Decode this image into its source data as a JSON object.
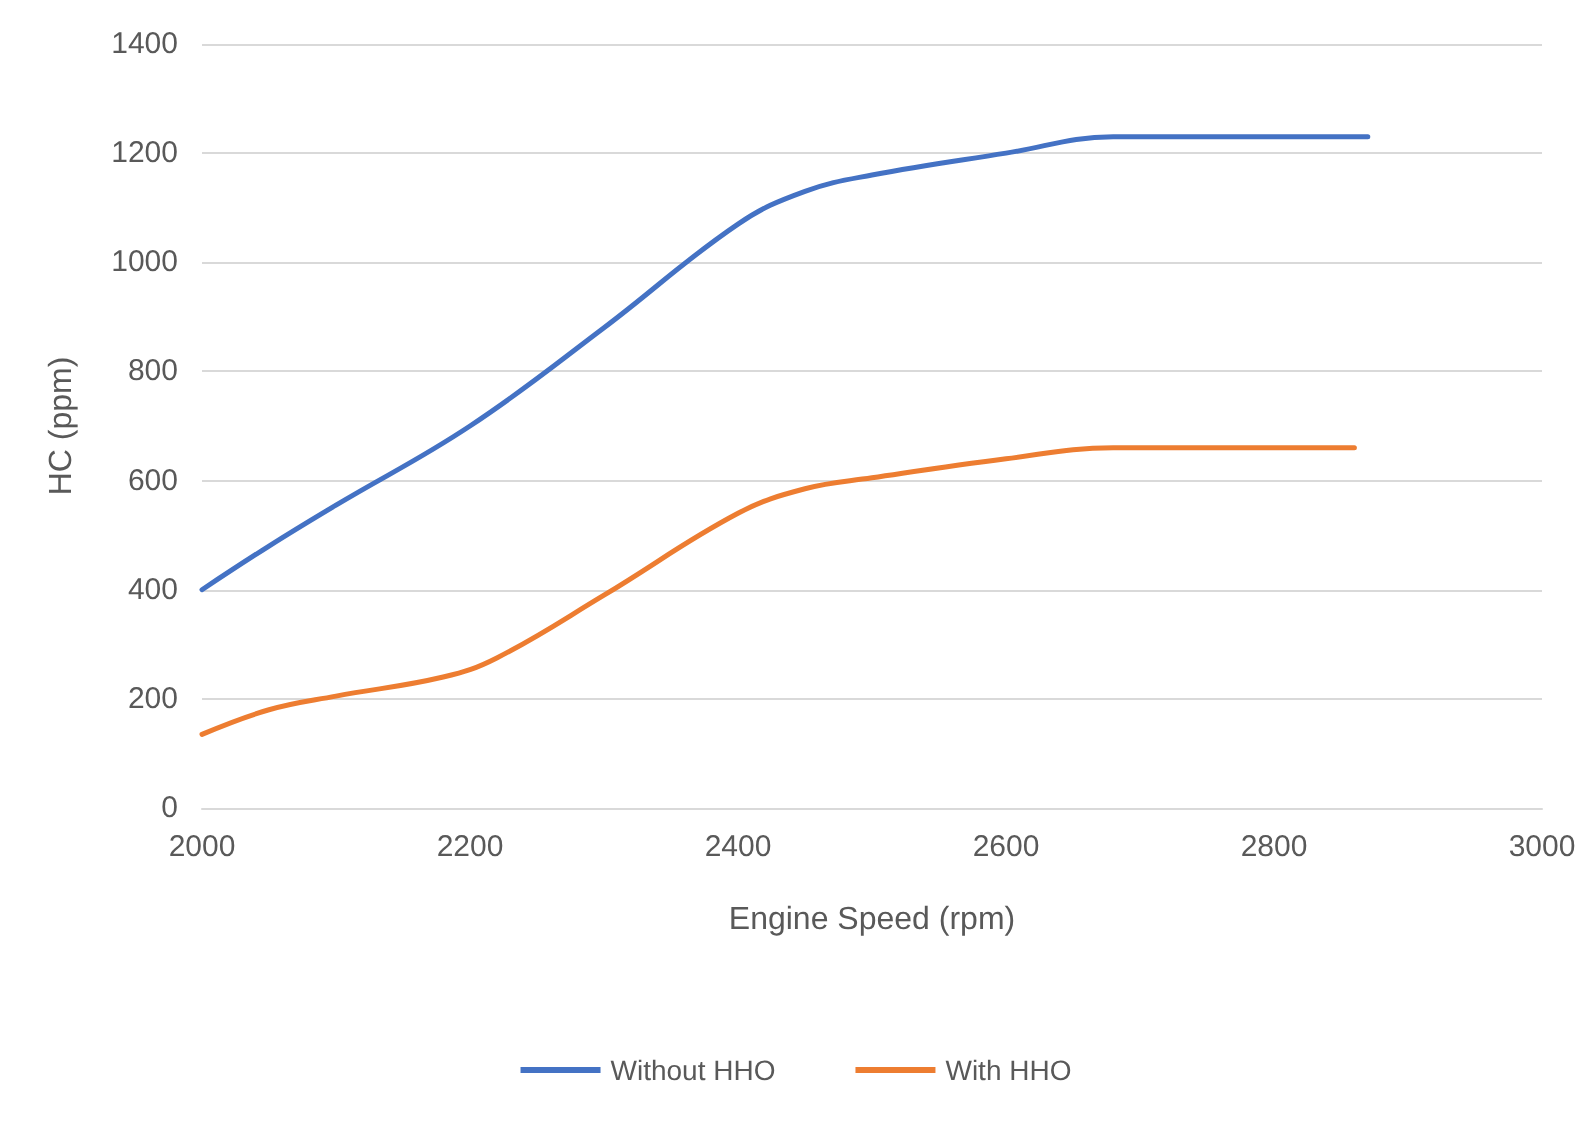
{
  "chart_data": {
    "type": "line",
    "xlabel": "Engine Speed (rpm)",
    "ylabel": "HC (ppm)",
    "xlim": [
      2000,
      3000
    ],
    "xticks": [
      2000,
      2200,
      2400,
      2600,
      2800,
      3000
    ],
    "ylim": [
      0,
      1400
    ],
    "yticks": [
      0,
      200,
      400,
      600,
      800,
      1000,
      1200,
      1400
    ],
    "grid": "y",
    "legend": "bottom",
    "marker": "none",
    "line_style": "solid",
    "series": [
      {
        "name": "Without HHO",
        "color": "#4472c4",
        "x": [
          2000,
          2050,
          2100,
          2200,
          2300,
          2400,
          2450,
          2500,
          2600,
          2680,
          2870
        ],
        "values": [
          400,
          480,
          555,
          700,
          880,
          1070,
          1130,
          1160,
          1200,
          1230,
          1230
        ]
      },
      {
        "name": "With HHO",
        "color": "#ed7d31",
        "x": [
          2000,
          2050,
          2100,
          2180,
          2220,
          2300,
          2400,
          2450,
          2500,
          2600,
          2680,
          2860
        ],
        "values": [
          135,
          180,
          205,
          240,
          275,
          390,
          540,
          585,
          605,
          640,
          660,
          660
        ]
      }
    ]
  }
}
